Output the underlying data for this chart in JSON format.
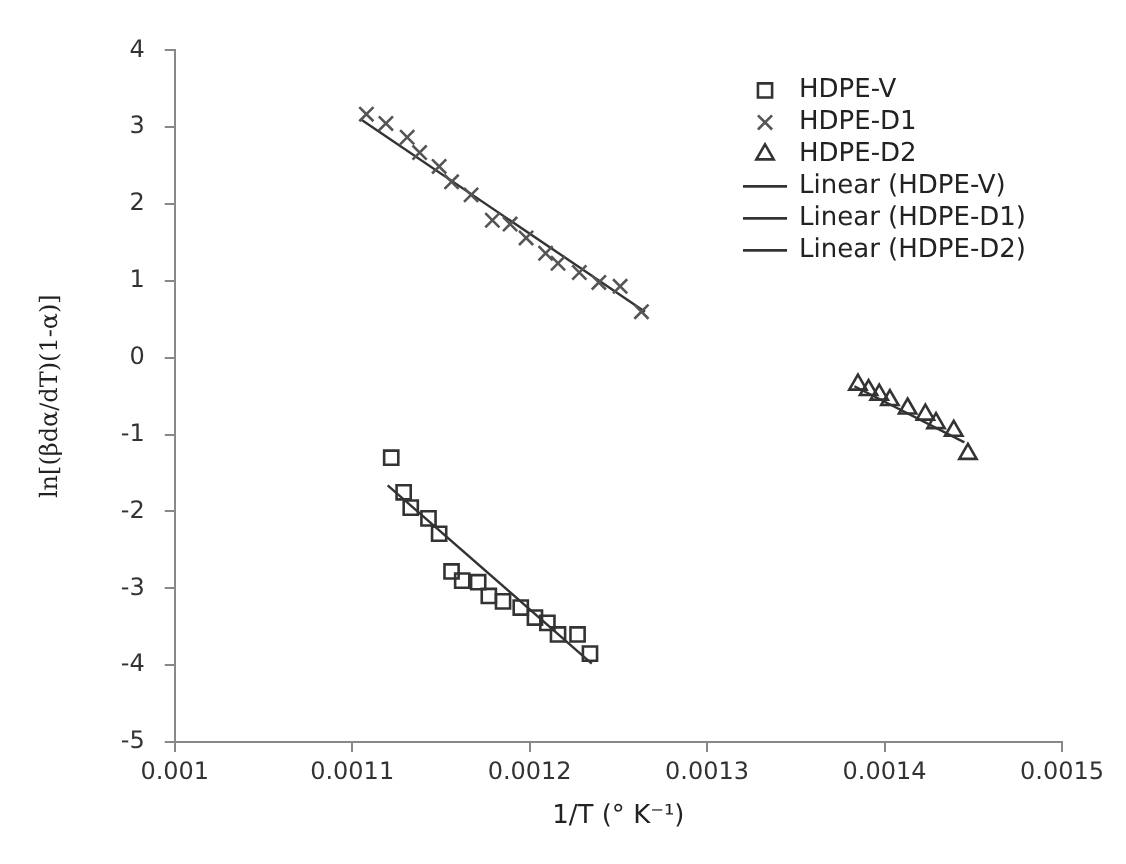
{
  "chart_data": {
    "type": "scatter",
    "xlabel": "1/T (° K⁻¹)",
    "ylabel": "ln[(βdα/dT)(1-α)]",
    "xlim": [
      0.001,
      0.0015
    ],
    "xticks": [
      {
        "value": 0.001,
        "label": "0.001"
      },
      {
        "value": 0.0011,
        "label": "0.0011"
      },
      {
        "value": 0.0012,
        "label": "0.0012"
      },
      {
        "value": 0.0013,
        "label": "0.0013"
      },
      {
        "value": 0.0014,
        "label": "0.0014"
      },
      {
        "value": 0.0015,
        "label": "0.0015"
      }
    ],
    "ylim": [
      -5,
      4
    ],
    "yticks": [
      -5,
      -4,
      -3,
      -2,
      -1,
      0,
      1,
      2,
      3,
      4
    ],
    "grid": false,
    "legend": "top right",
    "series": [
      {
        "name": "HDPE-V",
        "type": "scatter",
        "marker": "square",
        "color": "#333333",
        "x": [
          0.001122,
          0.001129,
          0.001133,
          0.001143,
          0.001149,
          0.001156,
          0.001162,
          0.001171,
          0.001177,
          0.001185,
          0.001195,
          0.001203,
          0.00121,
          0.001216,
          0.001227,
          0.001234
        ],
        "values": [
          -1.3,
          -1.75,
          -1.95,
          -2.09,
          -2.29,
          -2.78,
          -2.9,
          -2.92,
          -3.1,
          -3.17,
          -3.25,
          -3.38,
          -3.45,
          -3.6,
          -3.6,
          -3.85
        ]
      },
      {
        "name": "HDPE-D1",
        "type": "scatter",
        "marker": "cross",
        "color": "#555555",
        "x": [
          0.001108,
          0.001119,
          0.001131,
          0.001138,
          0.001149,
          0.001156,
          0.001167,
          0.001179,
          0.001189,
          0.001198,
          0.001209,
          0.001216,
          0.001228,
          0.001239,
          0.001251,
          0.001263
        ],
        "values": [
          3.17,
          3.05,
          2.87,
          2.67,
          2.49,
          2.29,
          2.12,
          1.79,
          1.74,
          1.56,
          1.36,
          1.23,
          1.11,
          0.98,
          0.93,
          0.6
        ]
      },
      {
        "name": "HDPE-D2",
        "type": "scatter",
        "marker": "triangle",
        "color": "#333333",
        "x": [
          0.001385,
          0.001391,
          0.001397,
          0.001403,
          0.001413,
          0.001423,
          0.001429,
          0.001439,
          0.001447
        ],
        "values": [
          -0.35,
          -0.42,
          -0.48,
          -0.55,
          -0.66,
          -0.74,
          -0.85,
          -0.95,
          -1.25
        ]
      },
      {
        "name": "Linear (HDPE-V)",
        "type": "line",
        "marker": "none",
        "line_style": "solid",
        "color": "#333333",
        "x": [
          0.00112,
          0.001235
        ],
        "values": [
          -1.66,
          -3.98
        ]
      },
      {
        "name": "Linear (HDPE-D1)",
        "type": "line",
        "marker": "none",
        "line_style": "solid",
        "color": "#333333",
        "x": [
          0.001105,
          0.001265
        ],
        "values": [
          3.1,
          0.6
        ]
      },
      {
        "name": "Linear (HDPE-D2)",
        "type": "line",
        "marker": "none",
        "line_style": "solid",
        "color": "#333333",
        "x": [
          0.001383,
          0.001445
        ],
        "values": [
          -0.37,
          -1.1
        ]
      }
    ]
  }
}
